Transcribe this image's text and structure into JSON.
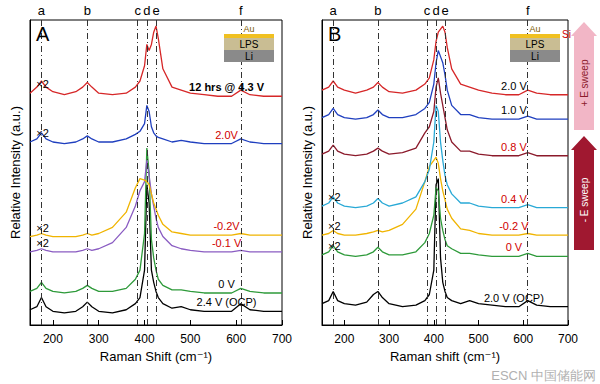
{
  "chart_data": [
    {
      "type": "line",
      "panel": "A",
      "xlabel": "Raman Shift (cm⁻¹)",
      "ylabel": "Relative Intensity (a.u.)",
      "xlim": [
        150,
        700
      ],
      "xticks": [
        200,
        300,
        400,
        500,
        600,
        700
      ],
      "ylim": [
        0,
        100
      ],
      "tick_labels": "x",
      "grid": false,
      "x": [
        150,
        165,
        175,
        185,
        200,
        225,
        250,
        265,
        275,
        285,
        300,
        330,
        360,
        380,
        390,
        400,
        405,
        410,
        415,
        420,
        425,
        430,
        440,
        460,
        480,
        500,
        530,
        560,
        590,
        610,
        630,
        660,
        700
      ],
      "series": [
        {
          "name": "2.4 V (OCP)",
          "color": "#000000",
          "values": [
            5,
            6,
            9,
            6,
            4.5,
            4,
            4.5,
            6,
            7.5,
            6,
            4.5,
            4,
            5,
            7,
            9,
            18,
            46,
            40,
            18,
            14,
            11,
            9,
            7,
            5.5,
            6,
            5,
            4.5,
            4.5,
            4.5,
            7,
            5,
            4.5,
            4.5
          ]
        },
        {
          "name": "0 V",
          "color": "#2e9a3a",
          "values": [
            11,
            12,
            14,
            12,
            11,
            10.5,
            11,
            12,
            13,
            12,
            11,
            11,
            12,
            15,
            18,
            30,
            58,
            50,
            28,
            22,
            18,
            15,
            13,
            11.5,
            11.5,
            11,
            10.5,
            10.5,
            10.5,
            12,
            11,
            10.5,
            10.5
          ]
        },
        {
          "name": "-0.1 V",
          "color": "#8a5cc2",
          "annotation": "×2",
          "values": [
            24,
            24.5,
            25,
            24.5,
            24,
            24,
            24,
            24.5,
            25,
            24.5,
            25,
            27,
            32,
            39,
            44,
            47,
            54,
            49,
            43,
            39,
            35,
            32,
            29,
            26,
            25,
            24.5,
            24,
            24,
            24,
            24.5,
            24,
            24,
            24
          ]
        },
        {
          "name": "-0.2V",
          "color": "#f0b400",
          "annotation": "×2",
          "values": [
            29,
            29.5,
            30,
            29.5,
            29,
            29,
            29,
            29.5,
            30,
            29.5,
            30,
            32,
            37,
            45,
            48,
            47.5,
            47,
            46,
            43,
            40,
            38,
            36,
            33,
            30.5,
            30,
            29.5,
            29.5,
            29.5,
            29.5,
            30,
            29.5,
            29.5,
            29.5
          ]
        },
        {
          "name": "2.0V",
          "color": "#1f3fbf",
          "annotation": "×2",
          "values": [
            60,
            61,
            63,
            61,
            60,
            59.5,
            60,
            61,
            62,
            61,
            60,
            60,
            61,
            62.5,
            63.5,
            66,
            72,
            70,
            65,
            63,
            62,
            61.5,
            61,
            60,
            60.5,
            60,
            59.5,
            59.5,
            59.5,
            61,
            60,
            59.5,
            59.5
          ]
        },
        {
          "name": "12 hrs @ 4.3 V",
          "color": "#d62728",
          "annotation": "×2",
          "values": [
            76,
            78,
            80,
            78,
            76.5,
            75.5,
            76.5,
            78,
            79.5,
            78,
            76,
            75.5,
            76,
            78,
            80,
            85,
            92,
            90,
            92,
            96,
            98,
            94,
            84,
            78,
            77,
            76,
            75.5,
            75,
            75,
            77,
            75.5,
            75,
            75
          ]
        }
      ],
      "peaks": [
        {
          "label": "a",
          "x": 175
        },
        {
          "label": "b",
          "x": 275
        },
        {
          "label": "c",
          "x": 385
        },
        {
          "label": "d",
          "x": 405
        },
        {
          "label": "e",
          "x": 425
        },
        {
          "label": "f",
          "x": 610
        }
      ],
      "inset": {
        "layers": [
          "Au",
          "LPS",
          "Li"
        ]
      }
    },
    {
      "type": "line",
      "panel": "B",
      "xlabel": "Raman shift (cm⁻¹)",
      "ylabel": "Relative Intensity (a.u.)",
      "xlim": [
        150,
        700
      ],
      "xticks": [
        200,
        300,
        400,
        500,
        600,
        700
      ],
      "ylim": [
        0,
        100
      ],
      "tick_labels": "x",
      "grid": false,
      "x": [
        150,
        165,
        175,
        185,
        200,
        225,
        250,
        265,
        275,
        285,
        300,
        330,
        360,
        380,
        390,
        400,
        405,
        410,
        415,
        420,
        425,
        430,
        440,
        460,
        480,
        500,
        530,
        560,
        590,
        610,
        630,
        660,
        700
      ],
      "series": [
        {
          "name": "2.0 V (OCP)",
          "color": "#000000",
          "values": [
            7,
            8,
            11,
            8,
            7,
            6.5,
            7.5,
            10,
            11,
            9,
            7,
            6,
            6.5,
            8,
            10,
            18,
            46,
            48,
            22,
            14,
            11,
            9,
            8,
            7,
            8,
            7,
            6.5,
            6,
            6,
            8,
            6.5,
            6,
            6
          ]
        },
        {
          "name": "0 V",
          "color": "#2e9a3a",
          "annotation": "×2",
          "values": [
            23,
            24,
            26,
            24,
            23,
            22.5,
            23,
            24,
            25.5,
            24,
            23,
            23,
            24,
            27,
            30,
            36,
            45,
            44,
            35,
            31,
            28,
            26,
            25,
            23.5,
            23.5,
            23,
            22.5,
            22.5,
            22.5,
            23.5,
            22.5,
            22.5,
            22.5
          ]
        },
        {
          "name": "-0.2 V",
          "color": "#f0b400",
          "annotation": "×2",
          "values": [
            29.5,
            30,
            31,
            30,
            29.5,
            29.5,
            30,
            30.5,
            31,
            30.5,
            31,
            33,
            38,
            47,
            52,
            54,
            55,
            53,
            48,
            44,
            41,
            38,
            35,
            31.5,
            31,
            30,
            29.5,
            29.5,
            29.5,
            30,
            29.5,
            29.5,
            29.5
          ]
        },
        {
          "name": "0.4 V",
          "color": "#29a9d6",
          "annotation": "×2",
          "values": [
            39,
            40,
            42,
            40,
            39,
            38.5,
            39,
            40,
            41.5,
            40,
            39,
            40,
            42,
            47,
            51,
            60,
            72,
            70,
            60,
            54,
            49,
            46,
            43,
            40,
            40,
            39,
            38.5,
            38.5,
            38.5,
            39.5,
            38.5,
            38.5,
            38.5
          ]
        },
        {
          "name": "0.8 V",
          "color": "#8b1a2b",
          "values": [
            56,
            57,
            59,
            57,
            56,
            55.5,
            56,
            57,
            58,
            57,
            56,
            56.5,
            58,
            63,
            65,
            70,
            78,
            81,
            76,
            72,
            68,
            64,
            60,
            57,
            57,
            56,
            55.5,
            55.5,
            55.5,
            56.5,
            55.5,
            55.5,
            55.5
          ]
        },
        {
          "name": "1.0 V",
          "color": "#1f3fbf",
          "values": [
            68,
            69,
            71,
            69,
            68,
            67.5,
            68,
            69,
            70.5,
            69,
            68,
            68,
            69,
            71,
            73,
            79,
            86,
            90,
            88,
            86,
            82,
            77,
            72,
            69,
            69,
            68,
            67.5,
            67.5,
            67.5,
            68.5,
            67.5,
            67.5,
            67.5
          ]
        },
        {
          "name": "2.0 V",
          "color": "#d62728",
          "values": [
            77,
            78,
            80,
            78,
            77,
            76,
            77,
            78,
            79.5,
            78,
            76.5,
            76,
            77,
            79,
            81,
            87,
            93,
            96,
            97,
            98,
            96,
            91,
            84,
            79,
            78,
            77,
            76,
            75.5,
            75.5,
            77,
            76,
            75.5,
            75.5
          ]
        }
      ],
      "peaks": [
        {
          "label": "a",
          "x": 175
        },
        {
          "label": "b",
          "x": 275
        },
        {
          "label": "c",
          "x": 385
        },
        {
          "label": "d",
          "x": 405
        },
        {
          "label": "e",
          "x": 425
        },
        {
          "label": "f",
          "x": 610
        }
      ],
      "inset": {
        "layers": [
          "Au",
          "LPS",
          "Li"
        ],
        "dopant": "Si"
      },
      "sweep_labels": [
        "+ E sweep",
        "- E sweep"
      ]
    }
  ],
  "watermark": "ESCN 中国储能网"
}
